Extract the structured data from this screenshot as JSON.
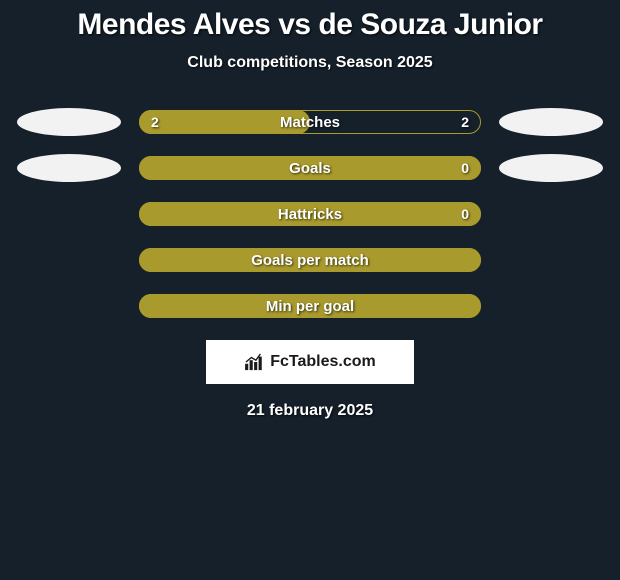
{
  "title": "Mendes Alves vs de Souza Junior",
  "subtitle": "Club competitions, Season 2025",
  "date": "21 february 2025",
  "brand": "FcTables.com",
  "colors": {
    "background": "#15202b",
    "ellipse_left": "#f2f2f2",
    "ellipse_right": "#f2f2f2",
    "bar_fill": "#a99a2d",
    "bar_border": "#a99a2d",
    "text": "#ffffff"
  },
  "rows": [
    {
      "label": "Matches",
      "left_val": "2",
      "right_val": "2",
      "has_ellipses": true,
      "fill_pct": 50,
      "show_left": true,
      "show_right": true
    },
    {
      "label": "Goals",
      "left_val": "",
      "right_val": "0",
      "has_ellipses": true,
      "fill_pct": 100,
      "show_left": false,
      "show_right": true
    },
    {
      "label": "Hattricks",
      "left_val": "",
      "right_val": "0",
      "has_ellipses": false,
      "fill_pct": 100,
      "show_left": false,
      "show_right": true
    },
    {
      "label": "Goals per match",
      "left_val": "",
      "right_val": "",
      "has_ellipses": false,
      "fill_pct": 100,
      "show_left": false,
      "show_right": false
    },
    {
      "label": "Min per goal",
      "left_val": "",
      "right_val": "",
      "has_ellipses": false,
      "fill_pct": 100,
      "show_left": false,
      "show_right": false
    }
  ]
}
